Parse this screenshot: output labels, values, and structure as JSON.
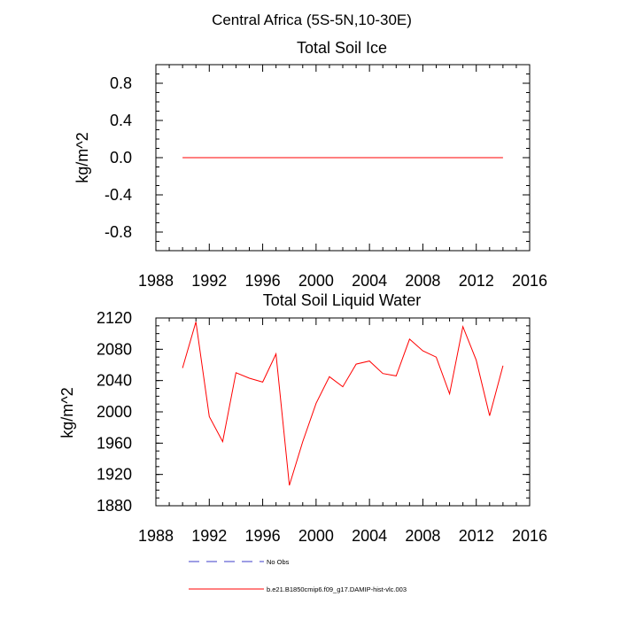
{
  "figure_title": "Central Africa (5S-5N,10-30E)",
  "colors": {
    "model_line": "#ff0000",
    "obs_line": "#3c3cc8",
    "axis": "#000000"
  },
  "legend": {
    "obs_label": "No Obs",
    "model_label": "b.e21.B1850cmip6.f09_g17.DAMIP-hist-vlc.003"
  },
  "chart_data": [
    {
      "type": "line",
      "title": "Total Soil Ice",
      "xlabel": "",
      "ylabel": "kg/m^2",
      "xlim": [
        1988,
        2016
      ],
      "ylim": [
        -1.0,
        1.0
      ],
      "xticks": [
        1988,
        1992,
        1996,
        2000,
        2004,
        2008,
        2012,
        2016
      ],
      "yticks": [
        -0.8,
        -0.4,
        0.0,
        0.4,
        0.8
      ],
      "ytick_labels": [
        "-0.8",
        "-0.4",
        "0.0",
        "0.4",
        "0.8"
      ],
      "x": [
        1990,
        1991,
        1992,
        1993,
        1994,
        1995,
        1996,
        1997,
        1998,
        1999,
        2000,
        2001,
        2002,
        2003,
        2004,
        2005,
        2006,
        2007,
        2008,
        2009,
        2010,
        2011,
        2012,
        2013,
        2014
      ],
      "series": [
        {
          "name": "b.e21.B1850cmip6.f09_g17.DAMIP-hist-vlc.003",
          "values": [
            0,
            0,
            0,
            0,
            0,
            0,
            0,
            0,
            0,
            0,
            0,
            0,
            0,
            0,
            0,
            0,
            0,
            0,
            0,
            0,
            0,
            0,
            0,
            0,
            0
          ]
        }
      ]
    },
    {
      "type": "line",
      "title": "Total Soil Liquid Water",
      "xlabel": "",
      "ylabel": "kg/m^2",
      "xlim": [
        1988,
        2016
      ],
      "ylim": [
        1880,
        2120
      ],
      "xticks": [
        1988,
        1992,
        1996,
        2000,
        2004,
        2008,
        2012,
        2016
      ],
      "yticks": [
        1880,
        1920,
        1960,
        2000,
        2040,
        2080,
        2120
      ],
      "ytick_labels": [
        "1880",
        "1920",
        "1960",
        "2000",
        "2040",
        "2080",
        "2120"
      ],
      "x": [
        1990,
        1991,
        1992,
        1993,
        1994,
        1995,
        1996,
        1997,
        1998,
        1999,
        2000,
        2001,
        2002,
        2003,
        2004,
        2005,
        2006,
        2007,
        2008,
        2009,
        2010,
        2011,
        2012,
        2013,
        2014
      ],
      "series": [
        {
          "name": "b.e21.B1850cmip6.f09_g17.DAMIP-hist-vlc.003",
          "values": [
            2056,
            2115,
            1994,
            1962,
            2050,
            2043,
            2038,
            2074,
            1906,
            1962,
            2011,
            2045,
            2032,
            2061,
            2065,
            2049,
            2046,
            2093,
            2078,
            2070,
            2023,
            2109,
            2066,
            1995,
            2059
          ]
        }
      ]
    }
  ]
}
